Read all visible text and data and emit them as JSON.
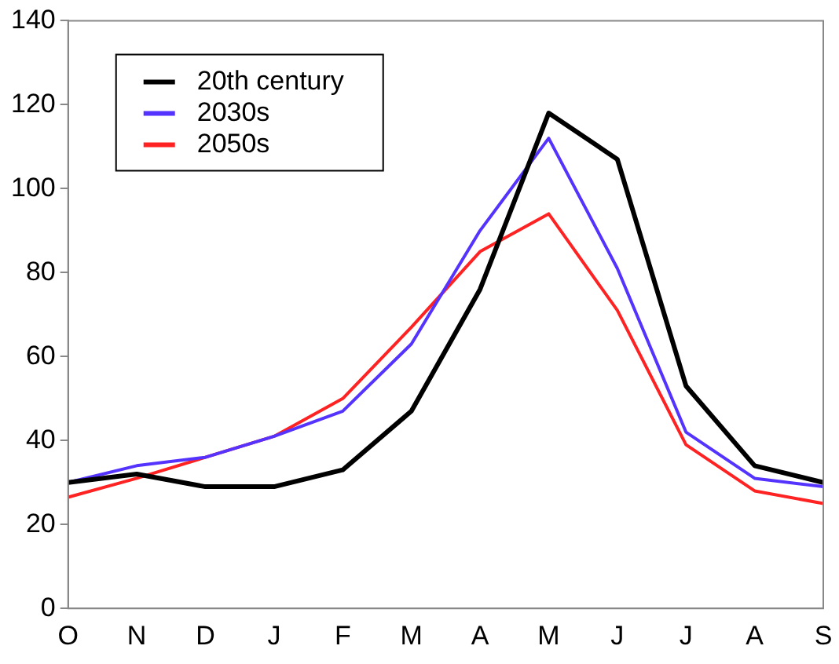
{
  "chart_data": {
    "type": "line",
    "categories": [
      "O",
      "N",
      "D",
      "J",
      "F",
      "M",
      "A",
      "M",
      "J",
      "J",
      "A",
      "S"
    ],
    "series": [
      {
        "name": "20th century",
        "color": "#000000",
        "values": [
          30,
          32,
          29,
          29,
          33,
          47,
          76,
          118,
          107,
          53,
          34,
          30
        ]
      },
      {
        "name": "2030s",
        "color": "#5533ff",
        "values": [
          30,
          34,
          36,
          41,
          47,
          63,
          90,
          112,
          81,
          42,
          31,
          29
        ]
      },
      {
        "name": "2050s",
        "color": "#ff2222",
        "values": [
          26.5,
          31,
          36,
          41,
          50,
          67,
          85,
          94,
          71,
          39,
          28,
          25
        ]
      }
    ],
    "ylim": [
      0,
      140
    ],
    "yticks": [
      0,
      20,
      40,
      60,
      80,
      100,
      120,
      140
    ],
    "grid": false,
    "legend": "top left",
    "marker": "none",
    "line_style": "solid"
  }
}
